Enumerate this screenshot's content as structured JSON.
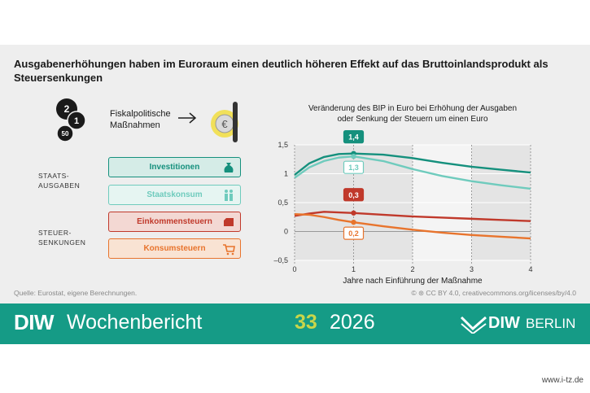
{
  "title": "Ausgabenerhöhungen haben im Euroraum einen deutlich höheren Effekt auf das Bruttoinlandsprodukt als Steuersenkungen",
  "left": {
    "fiscal_label": "Fiskalpolitische Maßnahmen",
    "coin_values": [
      "2",
      "1",
      "50"
    ],
    "group_spending": "STAATS-\nAUSGABEN",
    "group_taxes": "STEUER-\nSENKUNGEN",
    "boxes": [
      {
        "label": "Investitionen",
        "color": "#15907d",
        "fill": "#d5ece7",
        "icon": "money-bag-icon"
      },
      {
        "label": "Staatskonsum",
        "color": "#6fcbbd",
        "fill": "#e6f5f2",
        "icon": "people-icon"
      },
      {
        "label": "Einkommensteuern",
        "color": "#c0392b",
        "fill": "#f3d8d3",
        "icon": "wallet-icon"
      },
      {
        "label": "Konsumsteuern",
        "color": "#e8742d",
        "fill": "#f9e3d3",
        "icon": "shopping-cart-icon"
      }
    ]
  },
  "chart_data": {
    "type": "line",
    "title": "Veränderung des BIP in Euro bei Erhöhung der Ausgaben oder Senkung der Steuern um einen Euro",
    "xlabel": "Jahre nach Einführung der Maßnahme",
    "ylabel": "",
    "xlim": [
      0,
      4
    ],
    "ylim": [
      -0.5,
      1.5
    ],
    "xticks": [
      "0",
      "1",
      "2",
      "3",
      "4"
    ],
    "yticks": [
      "1,5",
      "1",
      "0,5",
      "0",
      "–0,5"
    ],
    "ytick_values": [
      1.5,
      1,
      0.5,
      0,
      -0.5
    ],
    "x": [
      0,
      0.25,
      0.5,
      0.75,
      1,
      1.5,
      2,
      2.5,
      3,
      3.5,
      4
    ],
    "series": [
      {
        "color": "#15907d",
        "values": [
          0.98,
          1.18,
          1.29,
          1.34,
          1.35,
          1.33,
          1.27,
          1.19,
          1.12,
          1.07,
          1.02
        ]
      },
      {
        "color": "#6fcbbd",
        "values": [
          0.93,
          1.11,
          1.22,
          1.28,
          1.3,
          1.22,
          1.08,
          0.96,
          0.87,
          0.8,
          0.74
        ]
      },
      {
        "color": "#c0392b",
        "values": [
          0.27,
          0.31,
          0.34,
          0.33,
          0.32,
          0.29,
          0.26,
          0.24,
          0.22,
          0.2,
          0.18
        ]
      },
      {
        "color": "#e8742d",
        "values": [
          0.3,
          0.29,
          0.25,
          0.2,
          0.16,
          0.09,
          0.03,
          -0.02,
          -0.06,
          -0.09,
          -0.12
        ]
      }
    ],
    "annotations": [
      {
        "text": "1,4",
        "x": 1,
        "y": 1.35,
        "color": "#15907d",
        "style": "filled"
      },
      {
        "text": "1,3",
        "x": 1,
        "y": 1.3,
        "color": "#6fcbbd",
        "style": "filled"
      },
      {
        "text": "0,3",
        "x": 1,
        "y": 0.32,
        "color": "#c0392b",
        "style": "filled"
      },
      {
        "text": "0,2",
        "x": 1,
        "y": 0.16,
        "color": "#e8742d",
        "style": "filled"
      }
    ]
  },
  "source_left": "Quelle: Eurostat, eigene Berechnungen.",
  "source_right": "© ⊛ CC BY 4.0, creativecommons.org/licenses/by/4.0",
  "footer": {
    "brand": "DIW",
    "publication": "Wochenbericht",
    "issue": "33",
    "year": "2026",
    "logo_diw": "DIW",
    "logo_berlin": "BERLIN"
  },
  "watermark": "www.i-tz.de"
}
